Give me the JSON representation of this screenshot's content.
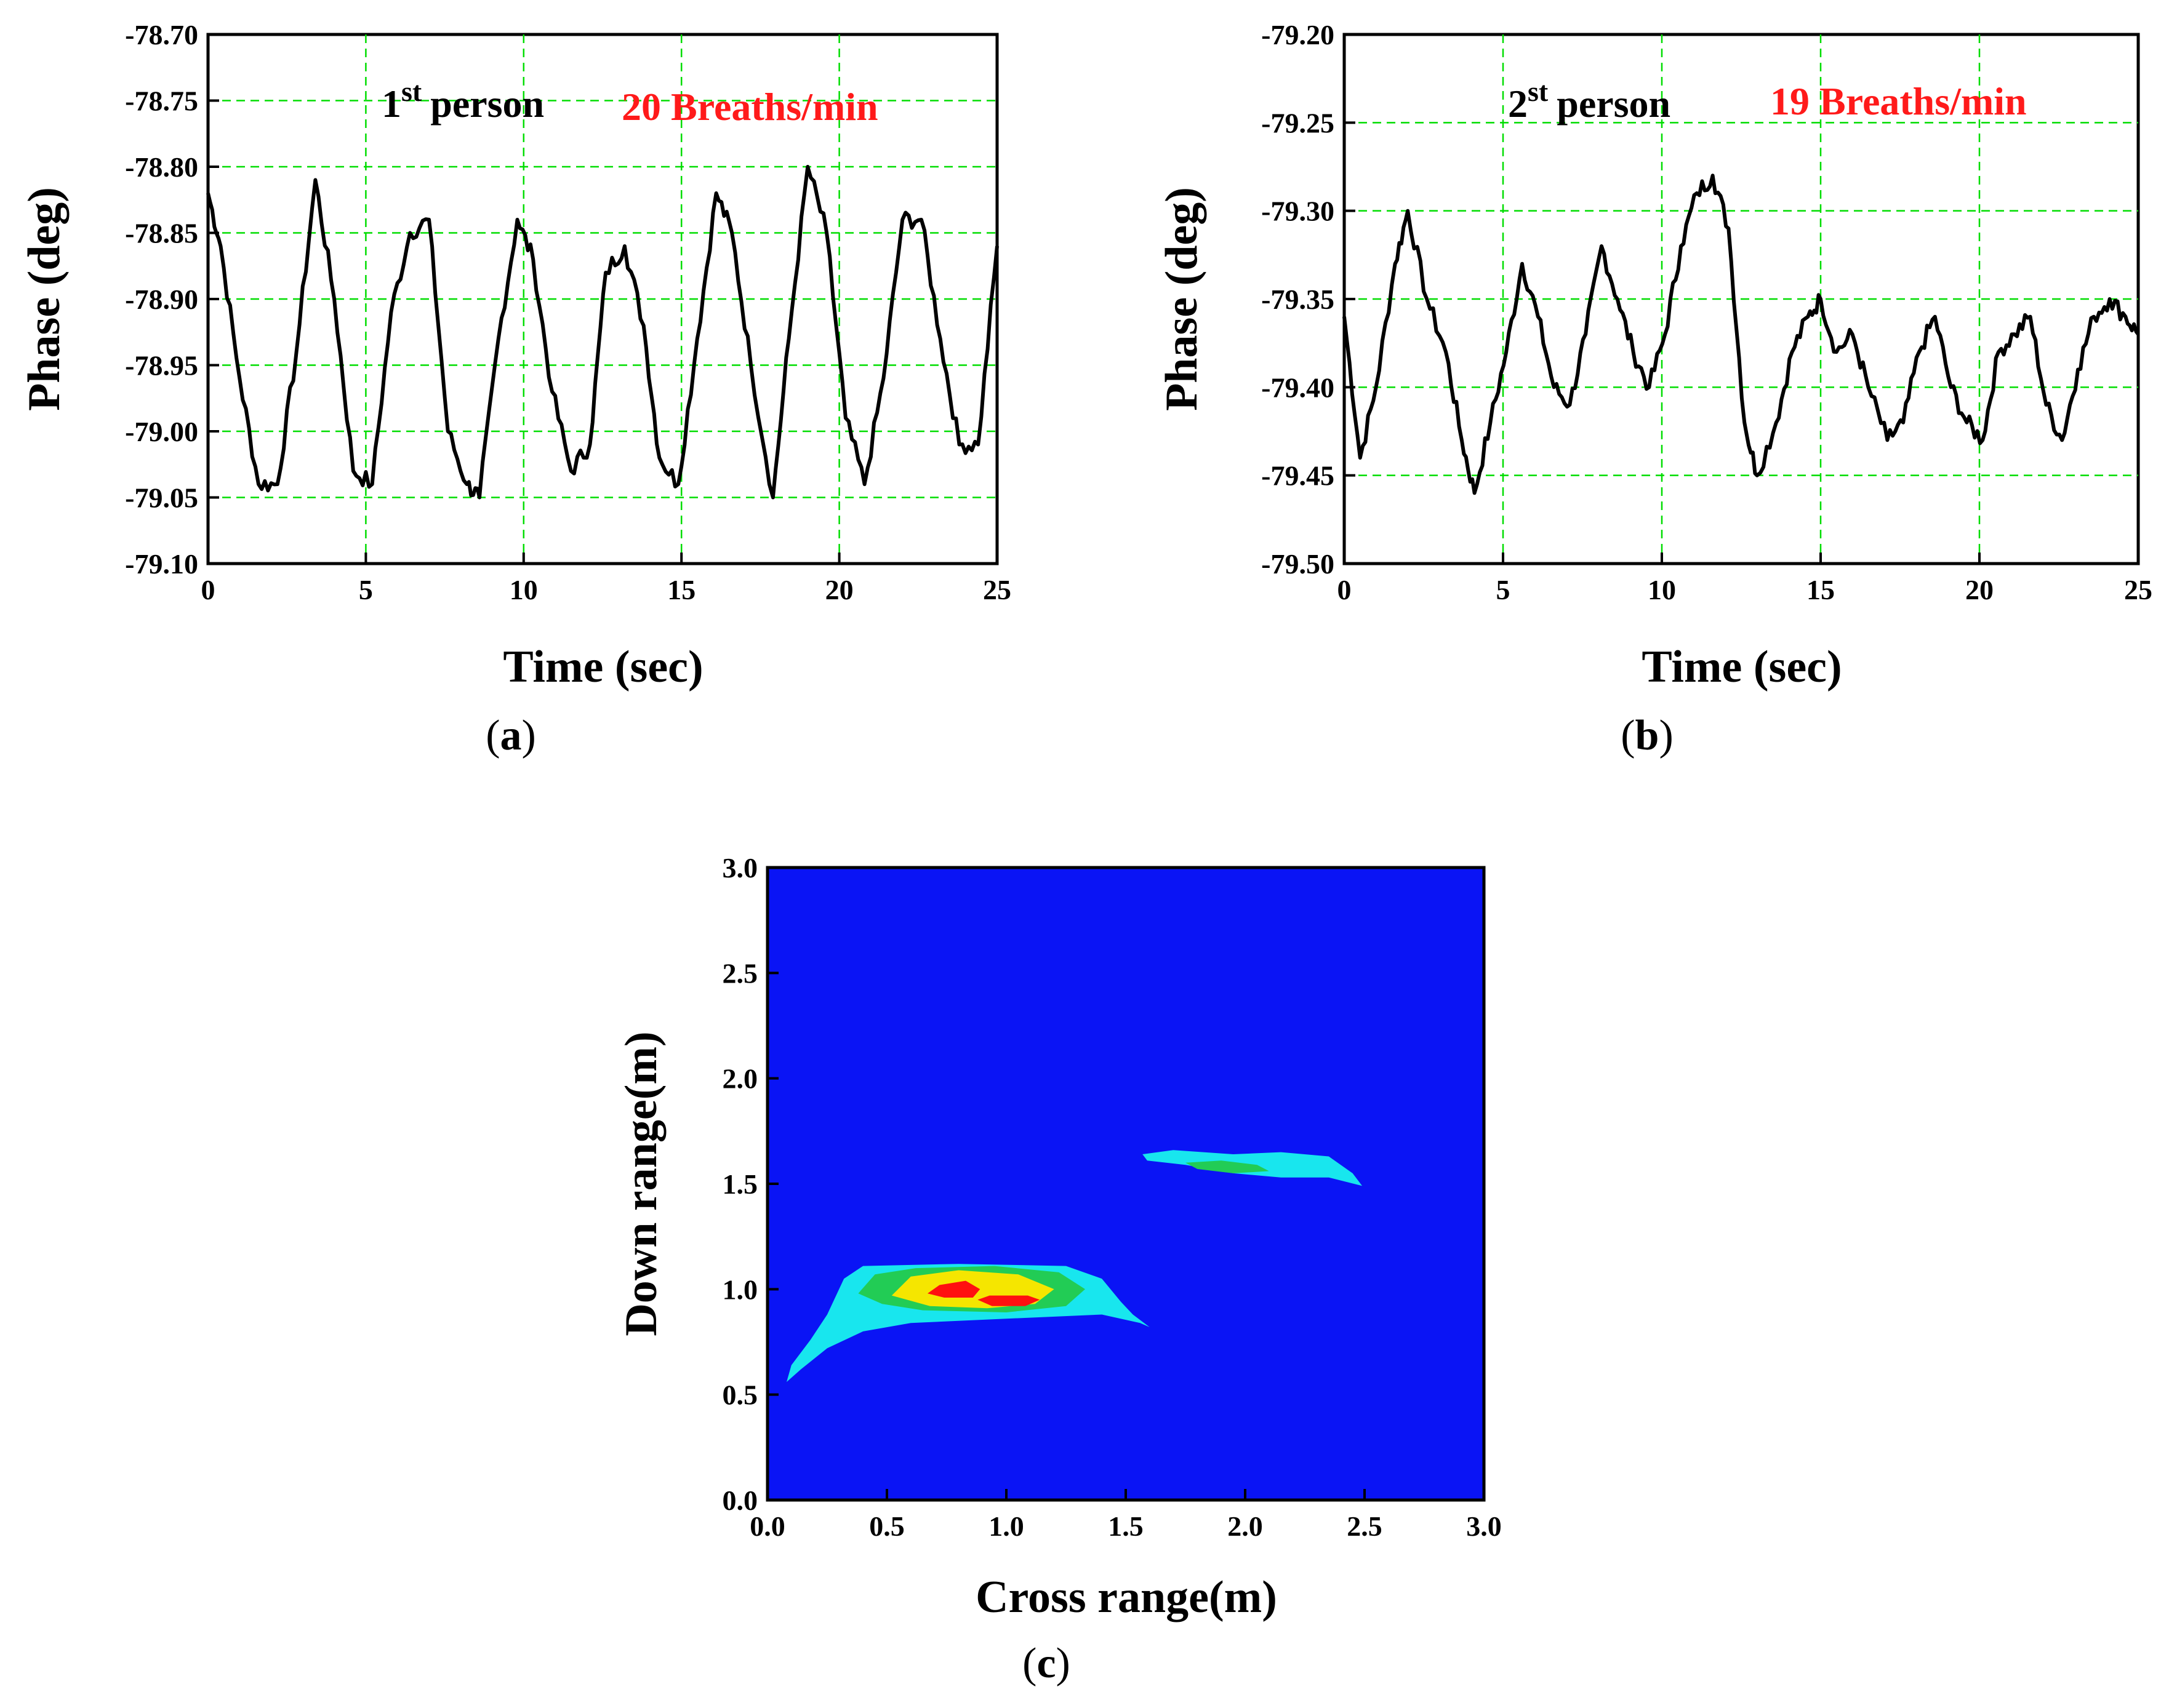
{
  "chart_data": [
    {
      "id": "a",
      "type": "line",
      "panel_label": "a",
      "title": "",
      "annotation_ordinal": "1",
      "annotation_suffix": "st",
      "annotation_text": "person",
      "annotation_rate": "20 Breaths/min",
      "annotation_rate_color": "#ff1a1a",
      "xlabel": "Time (sec)",
      "ylabel": "Phase (deg)",
      "xlim": [
        0,
        25
      ],
      "ylim": [
        -79.1,
        -78.7
      ],
      "xticks": [
        0,
        5,
        10,
        15,
        20,
        25
      ],
      "xtick_labels": [
        "0",
        "5",
        "10",
        "15",
        "20",
        "25"
      ],
      "yticks": [
        -78.7,
        -78.75,
        -78.8,
        -78.85,
        -78.9,
        -78.95,
        -79.0,
        -79.05,
        -79.1
      ],
      "ytick_labels": [
        "-78.70",
        "-78.75",
        "-78.80",
        "-78.85",
        "-78.90",
        "-78.95",
        "-79.00",
        "-79.05",
        "-79.10"
      ],
      "grid": true,
      "line_color": "#000000",
      "series": [
        {
          "name": "phase",
          "x": [
            0,
            0.4,
            1.0,
            1.6,
            2.2,
            2.8,
            3.4,
            4.0,
            4.6,
            5.2,
            5.8,
            6.4,
            7.0,
            7.6,
            8.2,
            8.6,
            9.2,
            9.8,
            10.3,
            10.9,
            11.5,
            12.1,
            12.6,
            13.2,
            13.8,
            14.3,
            14.9,
            15.5,
            16.1,
            16.6,
            17.2,
            17.9,
            18.4,
            19.0,
            19.6,
            20.2,
            20.8,
            21.4,
            22.0,
            22.6,
            23.2,
            23.8,
            24.4,
            25.0
          ],
          "y": [
            -78.82,
            -78.86,
            -78.96,
            -79.04,
            -79.04,
            -78.94,
            -78.81,
            -78.9,
            -79.03,
            -79.04,
            -78.91,
            -78.85,
            -78.84,
            -79.0,
            -79.04,
            -79.05,
            -78.93,
            -78.84,
            -78.87,
            -78.97,
            -79.03,
            -79.01,
            -78.88,
            -78.86,
            -78.92,
            -79.02,
            -79.04,
            -78.93,
            -78.82,
            -78.85,
            -78.95,
            -79.05,
            -78.93,
            -78.8,
            -78.85,
            -78.99,
            -79.04,
            -78.96,
            -78.84,
            -78.84,
            -78.93,
            -79.01,
            -79.01,
            -78.86
          ]
        }
      ]
    },
    {
      "id": "b",
      "type": "line",
      "panel_label": "b",
      "title": "",
      "annotation_ordinal": "2",
      "annotation_suffix": "st",
      "annotation_text": "person",
      "annotation_rate": "19 Breaths/min",
      "annotation_rate_color": "#ff1a1a",
      "xlabel": "Time (sec)",
      "ylabel": "Phase (deg)",
      "xlim": [
        0,
        25
      ],
      "ylim": [
        -79.5,
        -79.2
      ],
      "xticks": [
        0,
        5,
        10,
        15,
        20,
        25
      ],
      "xtick_labels": [
        "0",
        "5",
        "10",
        "15",
        "20",
        "25"
      ],
      "yticks": [
        -79.2,
        -79.25,
        -79.3,
        -79.35,
        -79.4,
        -79.45,
        -79.5
      ],
      "ytick_labels": [
        "-79.20",
        "-79.25",
        "-79.30",
        "-79.35",
        "-79.40",
        "-79.45",
        "-79.50"
      ],
      "grid": true,
      "line_color": "#000000",
      "series": [
        {
          "name": "phase",
          "x": [
            0,
            0.5,
            1.0,
            1.6,
            2.0,
            2.6,
            3.2,
            3.7,
            4.1,
            4.6,
            5.1,
            5.6,
            6.1,
            6.6,
            7.1,
            7.6,
            8.1,
            8.6,
            9.1,
            9.6,
            10.1,
            10.6,
            11.1,
            11.6,
            12.1,
            12.6,
            13.0,
            13.6,
            14.1,
            14.6,
            15.0,
            15.5,
            16.0,
            16.5,
            17.1,
            17.6,
            18.1,
            18.6,
            19.1,
            19.6,
            20.1,
            20.6,
            21.1,
            21.6,
            22.1,
            22.6,
            23.1,
            23.6,
            24.1,
            24.6,
            25.0
          ],
          "y": [
            -79.36,
            -79.44,
            -79.4,
            -79.33,
            -79.3,
            -79.35,
            -79.38,
            -79.43,
            -79.46,
            -79.42,
            -79.38,
            -79.33,
            -79.36,
            -79.4,
            -79.41,
            -79.37,
            -79.32,
            -79.35,
            -79.38,
            -79.4,
            -79.37,
            -79.32,
            -79.29,
            -79.28,
            -79.31,
            -79.42,
            -79.45,
            -79.42,
            -79.38,
            -79.36,
            -79.35,
            -79.38,
            -79.37,
            -79.4,
            -79.43,
            -79.42,
            -79.38,
            -79.36,
            -79.4,
            -79.42,
            -79.43,
            -79.38,
            -79.37,
            -79.36,
            -79.41,
            -79.43,
            -79.39,
            -79.36,
            -79.35,
            -79.36,
            -79.37
          ]
        }
      ]
    },
    {
      "id": "c",
      "type": "heatmap",
      "panel_label": "c",
      "title": "",
      "xlabel": "Cross range(m)",
      "ylabel": "Down range(m)",
      "xlim": [
        0.0,
        3.0
      ],
      "ylim": [
        0.0,
        3.0
      ],
      "xticks": [
        0.0,
        0.5,
        1.0,
        1.5,
        2.0,
        2.5,
        3.0
      ],
      "xtick_labels": [
        "0.0",
        "0.5",
        "1.0",
        "1.5",
        "2.0",
        "2.5",
        "3.0"
      ],
      "yticks": [
        0.0,
        0.5,
        1.0,
        1.5,
        2.0,
        2.5,
        3.0
      ],
      "ytick_labels": [
        "0.0",
        "0.5",
        "1.0",
        "1.5",
        "2.0",
        "2.5",
        "3.0"
      ],
      "grid": false,
      "background_color": "#0a14f5",
      "levels": [
        {
          "name": "target-1-cyan",
          "color": "#18e6ee",
          "points": [
            [
              0.08,
              0.56
            ],
            [
              0.1,
              0.64
            ],
            [
              0.18,
              0.76
            ],
            [
              0.25,
              0.88
            ],
            [
              0.32,
              1.05
            ],
            [
              0.4,
              1.11
            ],
            [
              0.8,
              1.12
            ],
            [
              1.25,
              1.11
            ],
            [
              1.4,
              1.05
            ],
            [
              1.48,
              0.94
            ],
            [
              1.53,
              0.88
            ],
            [
              1.6,
              0.82
            ],
            [
              1.56,
              0.84
            ],
            [
              1.4,
              0.88
            ],
            [
              1.0,
              0.86
            ],
            [
              0.6,
              0.84
            ],
            [
              0.4,
              0.8
            ],
            [
              0.25,
              0.72
            ],
            [
              0.14,
              0.62
            ]
          ]
        },
        {
          "name": "target-1-green",
          "color": "#22cc55",
          "points": [
            [
              0.38,
              0.98
            ],
            [
              0.45,
              1.07
            ],
            [
              0.62,
              1.1
            ],
            [
              0.95,
              1.11
            ],
            [
              1.22,
              1.08
            ],
            [
              1.33,
              1.0
            ],
            [
              1.25,
              0.92
            ],
            [
              1.0,
              0.89
            ],
            [
              0.65,
              0.9
            ],
            [
              0.48,
              0.93
            ]
          ]
        },
        {
          "name": "target-1-yellow",
          "color": "#f5e600",
          "points": [
            [
              0.52,
              0.97
            ],
            [
              0.6,
              1.06
            ],
            [
              0.8,
              1.09
            ],
            [
              1.05,
              1.07
            ],
            [
              1.2,
              1.0
            ],
            [
              1.12,
              0.93
            ],
            [
              0.92,
              0.91
            ],
            [
              0.68,
              0.92
            ]
          ]
        },
        {
          "name": "target-1-red-a",
          "color": "#ff1010",
          "points": [
            [
              0.67,
              0.98
            ],
            [
              0.72,
              1.02
            ],
            [
              0.83,
              1.04
            ],
            [
              0.89,
              1.0
            ],
            [
              0.86,
              0.96
            ],
            [
              0.74,
              0.96
            ]
          ]
        },
        {
          "name": "target-1-red-b",
          "color": "#ff1010",
          "points": [
            [
              0.88,
              0.95
            ],
            [
              0.93,
              0.97
            ],
            [
              1.09,
              0.97
            ],
            [
              1.14,
              0.95
            ],
            [
              1.08,
              0.92
            ],
            [
              0.94,
              0.92
            ]
          ]
        },
        {
          "name": "target-2-cyan",
          "color": "#18e6ee",
          "points": [
            [
              1.57,
              1.64
            ],
            [
              1.7,
              1.66
            ],
            [
              1.95,
              1.64
            ],
            [
              2.15,
              1.65
            ],
            [
              2.35,
              1.63
            ],
            [
              2.45,
              1.55
            ],
            [
              2.49,
              1.49
            ],
            [
              2.35,
              1.53
            ],
            [
              2.15,
              1.53
            ],
            [
              1.95,
              1.55
            ],
            [
              1.75,
              1.59
            ],
            [
              1.59,
              1.61
            ]
          ]
        },
        {
          "name": "target-2-green",
          "color": "#22cc55",
          "points": [
            [
              1.75,
              1.6
            ],
            [
              1.9,
              1.61
            ],
            [
              2.05,
              1.59
            ],
            [
              2.1,
              1.56
            ],
            [
              1.95,
              1.55
            ],
            [
              1.8,
              1.57
            ]
          ]
        }
      ]
    }
  ]
}
